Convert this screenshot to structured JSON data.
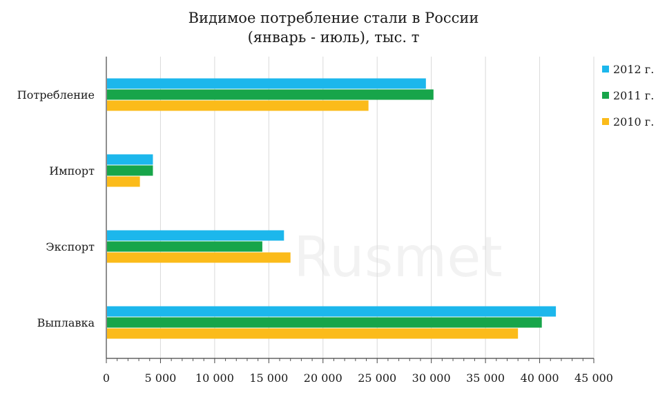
{
  "chart_data": {
    "type": "bar",
    "orientation": "horizontal",
    "title": "Видимое потребление стали в России",
    "subtitle": "(январь - июль), тыс. т",
    "categories": [
      "Потребление",
      "Импорт",
      "Экспорт",
      "Выплавка"
    ],
    "series": [
      {
        "name": "2012 г.",
        "color": "#1cb7ec",
        "values": [
          29500,
          4300,
          16400,
          41500
        ]
      },
      {
        "name": "2011 г.",
        "color": "#17a54a",
        "values": [
          30200,
          4300,
          14400,
          40200
        ]
      },
      {
        "name": "2010 г.",
        "color": "#fbbb1a",
        "values": [
          24200,
          3100,
          17000,
          38000
        ]
      }
    ],
    "xlim": [
      0,
      45000
    ],
    "xticks": [
      0,
      5000,
      10000,
      15000,
      20000,
      25000,
      30000,
      35000,
      40000,
      45000
    ],
    "xtick_labels": [
      "0",
      "5 000",
      "10 000",
      "15 000",
      "20 000",
      "25 000",
      "30 000",
      "35 000",
      "40 000",
      "45 000"
    ],
    "grid": "vertical",
    "legend_position": "right"
  },
  "watermark": "Rusmet"
}
